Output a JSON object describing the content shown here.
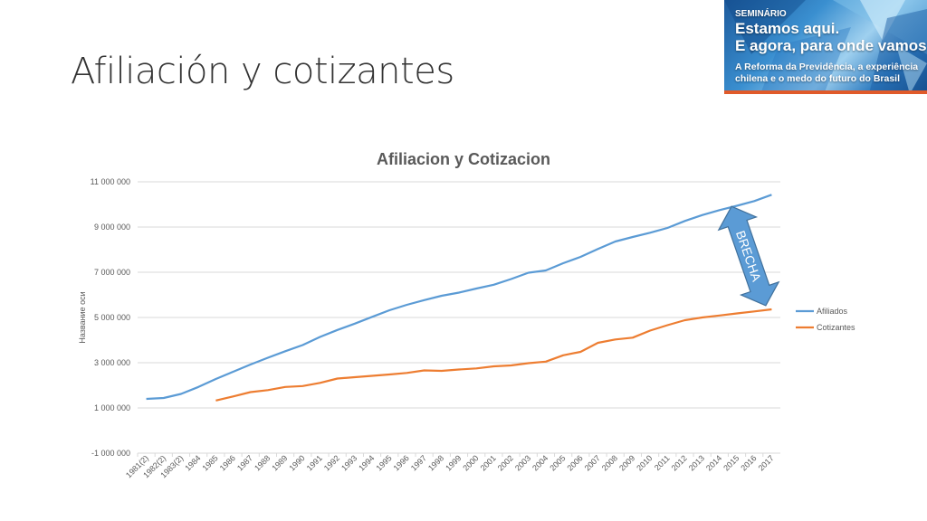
{
  "slide": {
    "title": "Afiliación y cotizantes"
  },
  "banner": {
    "kicker": "SEMINÁRIO",
    "headline_1": "Estamos aqui.",
    "headline_2": "E agora, para onde vamos?",
    "sub_1": "A Reforma da Previdência, a experiência",
    "sub_2": "chilena e o medo do futuro do Brasil"
  },
  "chart_data": {
    "type": "line",
    "title": "Afiliacion y Cotizacion",
    "ylabel": "Название оси",
    "xlabel": "",
    "ylim": [
      -1000000,
      11000000
    ],
    "yticks": [
      -1000000,
      1000000,
      3000000,
      5000000,
      7000000,
      9000000,
      11000000
    ],
    "ytick_labels": [
      "-1 000 000",
      "1 000 000",
      "3 000 000",
      "5 000 000",
      "7 000 000",
      "9 000 000",
      "11 000 000"
    ],
    "grid": true,
    "legend": "right",
    "categories": [
      "1981(2)",
      "1982(2)",
      "1983(2)",
      "1984",
      "1985",
      "1986",
      "1987",
      "1988",
      "1989",
      "1990",
      "1991",
      "1992",
      "1993",
      "1994",
      "1995",
      "1996",
      "1997",
      "1998",
      "1999",
      "2000",
      "2001",
      "2002",
      "2003",
      "2004",
      "2005",
      "2006",
      "2007",
      "2008",
      "2009",
      "2010",
      "2011",
      "2012",
      "2013",
      "2014",
      "2015",
      "2016",
      "2017"
    ],
    "series": [
      {
        "name": "Afiliados",
        "color": "#5b9bd5",
        "values": [
          1400000,
          1440000,
          1620000,
          1930000,
          2280000,
          2600000,
          2920000,
          3220000,
          3510000,
          3780000,
          4140000,
          4450000,
          4730000,
          5030000,
          5320000,
          5560000,
          5770000,
          5960000,
          6100000,
          6280000,
          6450000,
          6700000,
          6980000,
          7080000,
          7400000,
          7680000,
          8030000,
          8360000,
          8560000,
          8750000,
          8960000,
          9270000,
          9530000,
          9750000,
          9940000,
          10150000,
          10430000
        ]
      },
      {
        "name": "Cotizantes",
        "color": "#ed7d31",
        "values": [
          null,
          null,
          null,
          null,
          1330000,
          1510000,
          1700000,
          1790000,
          1930000,
          1970000,
          2110000,
          2300000,
          2360000,
          2420000,
          2480000,
          2550000,
          2660000,
          2640000,
          2700000,
          2750000,
          2840000,
          2880000,
          2980000,
          3050000,
          3330000,
          3480000,
          3880000,
          4030000,
          4110000,
          4420000,
          4660000,
          4880000,
          5000000,
          5090000,
          5180000,
          5270000,
          5360000
        ]
      }
    ],
    "annotation": {
      "text": "BRECHA",
      "shape": "double-arrow",
      "color": "#5b9bd5",
      "stroke": "#41719c"
    }
  }
}
